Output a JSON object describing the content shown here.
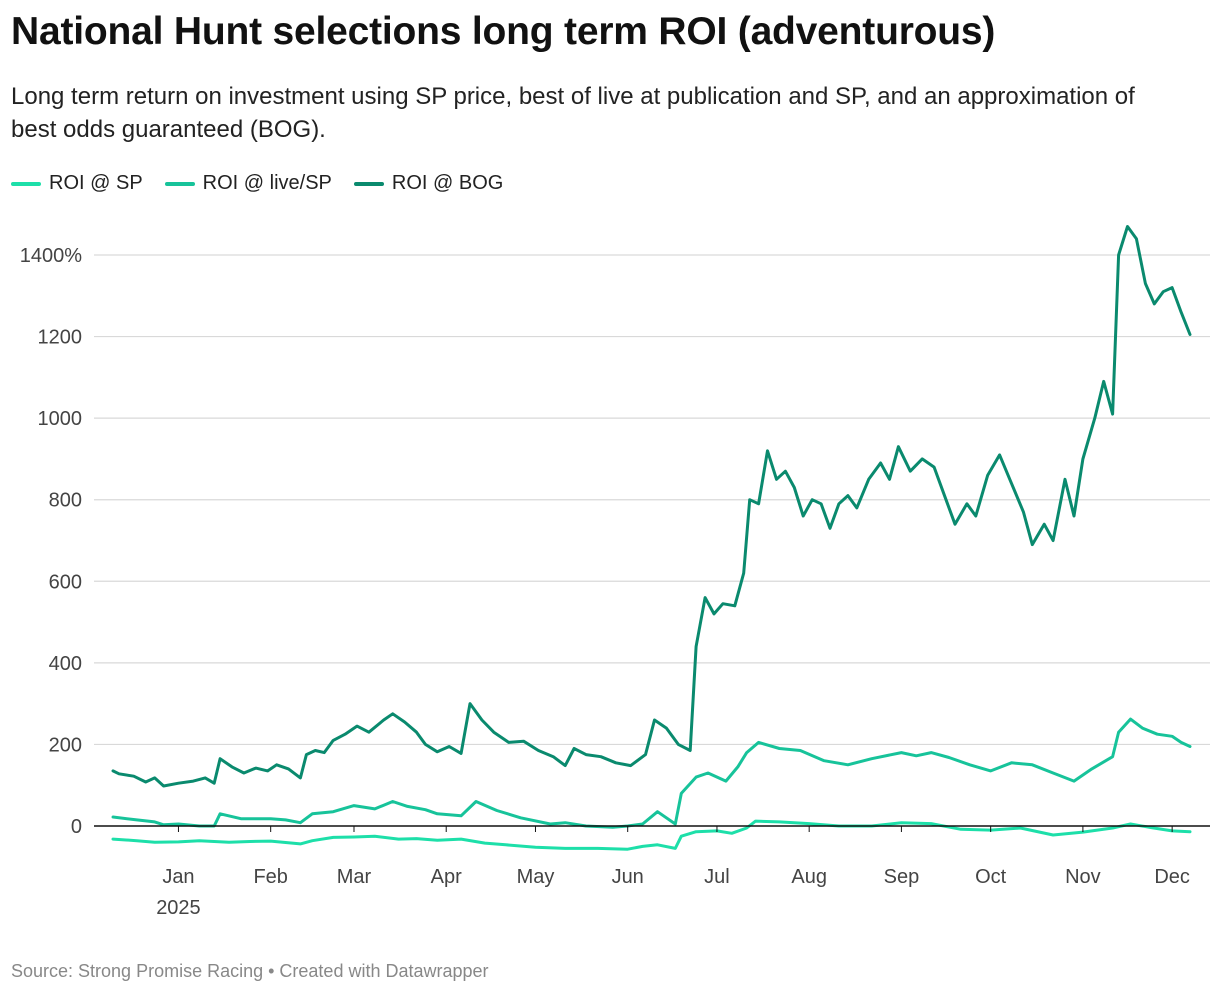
{
  "header": {
    "title": "National Hunt selections long term ROI (adventurous)",
    "subtitle": "Long term return on investment using SP price, best of live at publication and SP, and an approximation of best odds guaranteed (BOG)."
  },
  "footer": {
    "source": "Source: Strong Promise Racing • Created with Datawrapper"
  },
  "chart_data": {
    "type": "line",
    "title": "National Hunt selections long term ROI (adventurous)",
    "xlabel": "",
    "ylabel": "",
    "x_range": [
      "2024-12-24",
      "2025-12-21"
    ],
    "ylim": [
      0,
      1500
    ],
    "y_ticks": [
      {
        "value": 1400,
        "label": "1400%"
      },
      {
        "value": 1200,
        "label": "1200"
      },
      {
        "value": 1000,
        "label": "1000"
      },
      {
        "value": 800,
        "label": "800"
      },
      {
        "value": 600,
        "label": "600"
      },
      {
        "value": 400,
        "label": "400"
      },
      {
        "value": 200,
        "label": "200"
      },
      {
        "value": 0,
        "label": "0"
      }
    ],
    "x_ticks": [
      {
        "date": "2025-01-15",
        "label": "Jan",
        "year": "2025"
      },
      {
        "date": "2025-02-15",
        "label": "Feb"
      },
      {
        "date": "2025-03-15",
        "label": "Mar"
      },
      {
        "date": "2025-04-15",
        "label": "Apr"
      },
      {
        "date": "2025-05-15",
        "label": "May"
      },
      {
        "date": "2025-06-15",
        "label": "Jun"
      },
      {
        "date": "2025-07-15",
        "label": "Jul"
      },
      {
        "date": "2025-08-15",
        "label": "Aug"
      },
      {
        "date": "2025-09-15",
        "label": "Sep"
      },
      {
        "date": "2025-10-15",
        "label": "Oct"
      },
      {
        "date": "2025-11-15",
        "label": "Nov"
      },
      {
        "date": "2025-12-15",
        "label": "Dec"
      }
    ],
    "grid": true,
    "legend_position": "top-left",
    "series": [
      {
        "name": "ROI @ SP",
        "color": "#1ddfa9",
        "points": [
          [
            "2024-12-24",
            -32
          ],
          [
            "2025-01-01",
            -36
          ],
          [
            "2025-01-07",
            -40
          ],
          [
            "2025-01-15",
            -39
          ],
          [
            "2025-01-22",
            -36
          ],
          [
            "2025-02-01",
            -40
          ],
          [
            "2025-02-08",
            -38
          ],
          [
            "2025-02-15",
            -37
          ],
          [
            "2025-02-25",
            -44
          ],
          [
            "2025-03-01",
            -36
          ],
          [
            "2025-03-08",
            -28
          ],
          [
            "2025-03-15",
            -27
          ],
          [
            "2025-03-22",
            -25
          ],
          [
            "2025-03-30",
            -32
          ],
          [
            "2025-04-05",
            -31
          ],
          [
            "2025-04-12",
            -35
          ],
          [
            "2025-04-20",
            -32
          ],
          [
            "2025-04-28",
            -42
          ],
          [
            "2025-05-05",
            -46
          ],
          [
            "2025-05-15",
            -52
          ],
          [
            "2025-05-25",
            -55
          ],
          [
            "2025-06-05",
            -55
          ],
          [
            "2025-06-15",
            -57
          ],
          [
            "2025-06-20",
            -50
          ],
          [
            "2025-06-25",
            -46
          ],
          [
            "2025-07-01",
            -55
          ],
          [
            "2025-07-03",
            -25
          ],
          [
            "2025-07-08",
            -14
          ],
          [
            "2025-07-15",
            -12
          ],
          [
            "2025-07-20",
            -18
          ],
          [
            "2025-07-25",
            -5
          ],
          [
            "2025-07-28",
            12
          ],
          [
            "2025-08-05",
            10
          ],
          [
            "2025-08-15",
            6
          ],
          [
            "2025-08-25",
            0
          ],
          [
            "2025-09-05",
            0
          ],
          [
            "2025-09-15",
            8
          ],
          [
            "2025-09-25",
            6
          ],
          [
            "2025-10-05",
            -8
          ],
          [
            "2025-10-15",
            -10
          ],
          [
            "2025-10-25",
            -5
          ],
          [
            "2025-11-05",
            -22
          ],
          [
            "2025-11-15",
            -15
          ],
          [
            "2025-11-25",
            -5
          ],
          [
            "2025-12-01",
            5
          ],
          [
            "2025-12-08",
            -4
          ],
          [
            "2025-12-15",
            -12
          ],
          [
            "2025-12-21",
            -14
          ]
        ]
      },
      {
        "name": "ROI @ live/SP",
        "color": "#17c39a",
        "points": [
          [
            "2024-12-24",
            22
          ],
          [
            "2025-01-01",
            15
          ],
          [
            "2025-01-07",
            10
          ],
          [
            "2025-01-10",
            3
          ],
          [
            "2025-01-15",
            5
          ],
          [
            "2025-01-22",
            0
          ],
          [
            "2025-01-27",
            0
          ],
          [
            "2025-01-29",
            30
          ],
          [
            "2025-02-05",
            18
          ],
          [
            "2025-02-15",
            18
          ],
          [
            "2025-02-20",
            15
          ],
          [
            "2025-02-25",
            8
          ],
          [
            "2025-03-01",
            30
          ],
          [
            "2025-03-08",
            35
          ],
          [
            "2025-03-15",
            50
          ],
          [
            "2025-03-22",
            42
          ],
          [
            "2025-03-28",
            60
          ],
          [
            "2025-04-02",
            48
          ],
          [
            "2025-04-08",
            40
          ],
          [
            "2025-04-12",
            30
          ],
          [
            "2025-04-20",
            25
          ],
          [
            "2025-04-25",
            60
          ],
          [
            "2025-05-02",
            38
          ],
          [
            "2025-05-10",
            20
          ],
          [
            "2025-05-20",
            5
          ],
          [
            "2025-05-25",
            8
          ],
          [
            "2025-06-01",
            0
          ],
          [
            "2025-06-10",
            -3
          ],
          [
            "2025-06-15",
            0
          ],
          [
            "2025-06-20",
            5
          ],
          [
            "2025-06-25",
            35
          ],
          [
            "2025-07-01",
            5
          ],
          [
            "2025-07-03",
            80
          ],
          [
            "2025-07-08",
            120
          ],
          [
            "2025-07-12",
            130
          ],
          [
            "2025-07-18",
            110
          ],
          [
            "2025-07-22",
            145
          ],
          [
            "2025-07-25",
            180
          ],
          [
            "2025-07-29",
            205
          ],
          [
            "2025-08-05",
            190
          ],
          [
            "2025-08-12",
            185
          ],
          [
            "2025-08-20",
            160
          ],
          [
            "2025-08-28",
            150
          ],
          [
            "2025-09-05",
            165
          ],
          [
            "2025-09-15",
            180
          ],
          [
            "2025-09-20",
            172
          ],
          [
            "2025-09-25",
            180
          ],
          [
            "2025-10-01",
            168
          ],
          [
            "2025-10-08",
            150
          ],
          [
            "2025-10-15",
            135
          ],
          [
            "2025-10-22",
            155
          ],
          [
            "2025-10-29",
            150
          ],
          [
            "2025-11-05",
            130
          ],
          [
            "2025-11-12",
            110
          ],
          [
            "2025-11-18",
            140
          ],
          [
            "2025-11-25",
            170
          ],
          [
            "2025-11-27",
            230
          ],
          [
            "2025-12-01",
            262
          ],
          [
            "2025-12-05",
            240
          ],
          [
            "2025-12-10",
            225
          ],
          [
            "2025-12-15",
            220
          ],
          [
            "2025-12-18",
            205
          ],
          [
            "2025-12-21",
            195
          ]
        ]
      },
      {
        "name": "ROI @ BOG",
        "color": "#0a8a6e",
        "points": [
          [
            "2024-12-24",
            135
          ],
          [
            "2024-12-26",
            128
          ],
          [
            "2024-12-31",
            122
          ],
          [
            "2025-01-04",
            108
          ],
          [
            "2025-01-07",
            118
          ],
          [
            "2025-01-10",
            98
          ],
          [
            "2025-01-15",
            105
          ],
          [
            "2025-01-20",
            110
          ],
          [
            "2025-01-24",
            118
          ],
          [
            "2025-01-27",
            105
          ],
          [
            "2025-01-29",
            165
          ],
          [
            "2025-02-02",
            145
          ],
          [
            "2025-02-06",
            130
          ],
          [
            "2025-02-10",
            142
          ],
          [
            "2025-02-14",
            135
          ],
          [
            "2025-02-17",
            150
          ],
          [
            "2025-02-21",
            140
          ],
          [
            "2025-02-25",
            118
          ],
          [
            "2025-02-27",
            175
          ],
          [
            "2025-03-02",
            185
          ],
          [
            "2025-03-05",
            180
          ],
          [
            "2025-03-08",
            210
          ],
          [
            "2025-03-12",
            225
          ],
          [
            "2025-03-16",
            245
          ],
          [
            "2025-03-20",
            230
          ],
          [
            "2025-03-25",
            260
          ],
          [
            "2025-03-28",
            275
          ],
          [
            "2025-04-01",
            255
          ],
          [
            "2025-04-05",
            230
          ],
          [
            "2025-04-08",
            200
          ],
          [
            "2025-04-12",
            182
          ],
          [
            "2025-04-16",
            195
          ],
          [
            "2025-04-20",
            178
          ],
          [
            "2025-04-23",
            300
          ],
          [
            "2025-04-27",
            260
          ],
          [
            "2025-05-01",
            230
          ],
          [
            "2025-05-06",
            205
          ],
          [
            "2025-05-11",
            208
          ],
          [
            "2025-05-16",
            185
          ],
          [
            "2025-05-21",
            170
          ],
          [
            "2025-05-25",
            148
          ],
          [
            "2025-05-28",
            190
          ],
          [
            "2025-06-01",
            175
          ],
          [
            "2025-06-06",
            170
          ],
          [
            "2025-06-11",
            155
          ],
          [
            "2025-06-16",
            148
          ],
          [
            "2025-06-21",
            175
          ],
          [
            "2025-06-24",
            260
          ],
          [
            "2025-06-28",
            240
          ],
          [
            "2025-07-02",
            200
          ],
          [
            "2025-07-06",
            185
          ],
          [
            "2025-07-08",
            440
          ],
          [
            "2025-07-11",
            560
          ],
          [
            "2025-07-14",
            520
          ],
          [
            "2025-07-17",
            545
          ],
          [
            "2025-07-21",
            540
          ],
          [
            "2025-07-24",
            620
          ],
          [
            "2025-07-26",
            800
          ],
          [
            "2025-07-29",
            790
          ],
          [
            "2025-08-01",
            920
          ],
          [
            "2025-08-04",
            850
          ],
          [
            "2025-08-07",
            870
          ],
          [
            "2025-08-10",
            830
          ],
          [
            "2025-08-13",
            760
          ],
          [
            "2025-08-16",
            800
          ],
          [
            "2025-08-19",
            790
          ],
          [
            "2025-08-22",
            730
          ],
          [
            "2025-08-25",
            790
          ],
          [
            "2025-08-28",
            810
          ],
          [
            "2025-08-31",
            780
          ],
          [
            "2025-09-04",
            850
          ],
          [
            "2025-09-08",
            890
          ],
          [
            "2025-09-11",
            850
          ],
          [
            "2025-09-14",
            930
          ],
          [
            "2025-09-18",
            870
          ],
          [
            "2025-09-22",
            900
          ],
          [
            "2025-09-26",
            880
          ],
          [
            "2025-09-30",
            800
          ],
          [
            "2025-10-03",
            740
          ],
          [
            "2025-10-07",
            790
          ],
          [
            "2025-10-10",
            760
          ],
          [
            "2025-10-14",
            860
          ],
          [
            "2025-10-18",
            910
          ],
          [
            "2025-10-22",
            840
          ],
          [
            "2025-10-26",
            770
          ],
          [
            "2025-10-29",
            690
          ],
          [
            "2025-11-02",
            740
          ],
          [
            "2025-11-05",
            700
          ],
          [
            "2025-11-09",
            850
          ],
          [
            "2025-11-12",
            760
          ],
          [
            "2025-11-15",
            900
          ],
          [
            "2025-11-19",
            1000
          ],
          [
            "2025-11-22",
            1090
          ],
          [
            "2025-11-25",
            1010
          ],
          [
            "2025-11-27",
            1400
          ],
          [
            "2025-11-30",
            1470
          ],
          [
            "2025-12-03",
            1440
          ],
          [
            "2025-12-06",
            1330
          ],
          [
            "2025-12-09",
            1280
          ],
          [
            "2025-12-12",
            1310
          ],
          [
            "2025-12-15",
            1320
          ],
          [
            "2025-12-18",
            1260
          ],
          [
            "2025-12-21",
            1205
          ]
        ]
      }
    ]
  }
}
